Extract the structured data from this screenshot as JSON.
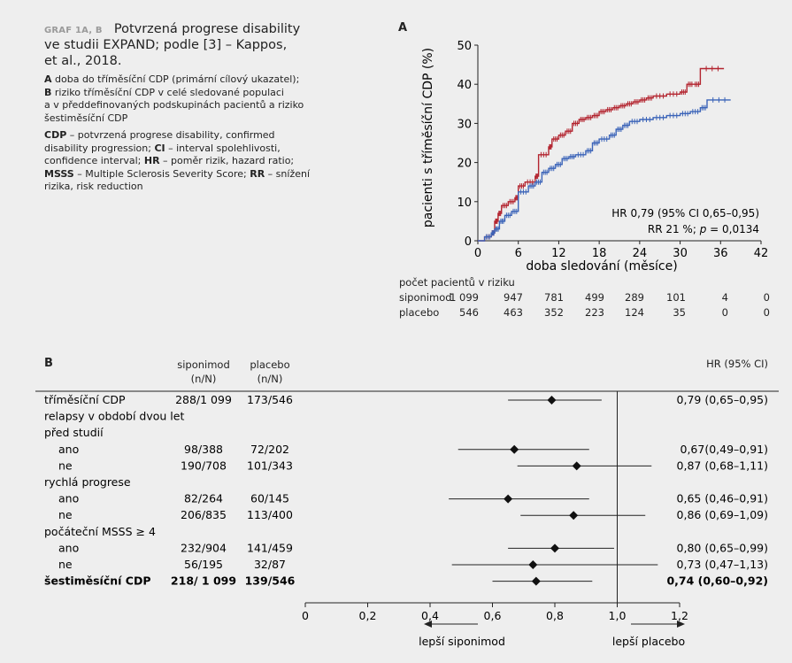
{
  "caption": {
    "tag": "GRAF 1A, B",
    "title_lines": [
      "Potvrzená progrese disability",
      "ve studii EXPAND; podle [3] – Kappos,",
      "et al., 2018."
    ],
    "legend_a_label": "A",
    "legend_a_text": " doba do tříměsíční CDP (primární cílový ukazatel);",
    "legend_b_label": "B",
    "legend_b_text": " riziko tříměsíční CDP v celé sledované populaci",
    "legend_b_line2": "a v předdefinovaných podskupinách pacientů a riziko",
    "legend_b_line3": "šestiměsíční CDP",
    "abbr": [
      {
        "key": "CDP",
        "text": " – potvrzená progrese disability, confirmed"
      },
      {
        "key": "",
        "text": "disability progression; "
      },
      {
        "key": "CI",
        "text": " – interval spolehlivosti,"
      },
      {
        "key": "",
        "text": "confidence interval; "
      },
      {
        "key": "HR",
        "text": " – poměr rizik, hazard ratio;"
      },
      {
        "key": "MSSS",
        "text": " – Multiple Sclerosis Severity Score; "
      },
      {
        "key": "RR",
        "text": " – snížení"
      },
      {
        "key": "",
        "text": "rizika, risk reduction"
      }
    ]
  },
  "panel_a": {
    "label": "A",
    "annotation_1": "HR 0,79 (95% CI 0,65–0,95)",
    "annotation_2_pre": "RR 21 %; ",
    "annotation_2_p": "p",
    "annotation_2_post": " = 0,0134",
    "risk_title": "počet pacientů v riziku",
    "risk_rows": [
      {
        "name": "siponimod",
        "values": [
          "1 099",
          "947",
          "781",
          "499",
          "289",
          "101",
          "4",
          "0"
        ]
      },
      {
        "name": "placebo",
        "values": [
          "546",
          "463",
          "352",
          "223",
          "124",
          "35",
          "0",
          "0"
        ]
      }
    ]
  },
  "panel_b": {
    "label": "B",
    "col_siponimod": "siponimod",
    "col_siponimod_sub": "(n/N)",
    "col_placebo": "placebo",
    "col_placebo_sub": "(n/N)",
    "col_hr": "HR (95% CI)",
    "favors_left": "lepší siponimod",
    "favors_right": "lepší placebo"
  },
  "colors": {
    "siponimod": "#3a63b8",
    "placebo": "#b3242f"
  },
  "chart_data": [
    {
      "type": "line",
      "title": "",
      "xlabel": "doba sledování (měsíce)",
      "ylabel": "pacienti s tříměsíční CDP (%)",
      "xlim": [
        0,
        42
      ],
      "ylim": [
        0,
        50
      ],
      "xticks": [
        0,
        6,
        12,
        18,
        24,
        30,
        36,
        42
      ],
      "yticks": [
        0,
        10,
        20,
        30,
        40,
        50
      ],
      "series": [
        {
          "name": "placebo",
          "color": "#b3242f",
          "x": [
            0,
            1,
            2,
            2.5,
            3,
            3.5,
            4.5,
            5.5,
            6,
            7,
            8.5,
            9,
            10.5,
            11,
            12,
            13,
            14,
            15,
            16,
            17,
            18,
            19,
            20,
            21,
            22,
            23,
            24,
            25,
            26,
            28,
            30,
            31,
            32,
            33,
            36.5
          ],
          "y": [
            0,
            1,
            2,
            5,
            7,
            9,
            10,
            11,
            14,
            15,
            16.5,
            22,
            24,
            26,
            27,
            28,
            30,
            31,
            31.5,
            32,
            33,
            33.5,
            34,
            34.5,
            35,
            35.5,
            36,
            36.5,
            37,
            37.5,
            38,
            40,
            40,
            44,
            44
          ]
        },
        {
          "name": "siponimod",
          "color": "#3a63b8",
          "x": [
            0,
            1,
            2,
            2.5,
            3.2,
            4,
            5,
            6,
            7.5,
            8.5,
            9.5,
            10.5,
            11.5,
            12.5,
            13.5,
            14.5,
            16,
            17,
            18,
            19.5,
            20.5,
            21.5,
            22.5,
            24,
            26,
            28,
            30,
            31.5,
            33,
            34,
            37.5
          ],
          "y": [
            0,
            1,
            2,
            3,
            5,
            6.5,
            7.5,
            12.5,
            14,
            15,
            17.5,
            18.5,
            19.5,
            21,
            21.5,
            22,
            23,
            25,
            26,
            27,
            28.5,
            29.5,
            30.5,
            31,
            31.5,
            32,
            32.5,
            33,
            34,
            36,
            36
          ]
        }
      ]
    },
    {
      "type": "scatter",
      "title": "",
      "xlim": [
        0,
        1.2
      ],
      "xticks": [
        "0",
        "0,2",
        "0,4",
        "0,6",
        "0,8",
        "1,0",
        "1,2"
      ],
      "reference_line": 1.0,
      "rows": [
        {
          "label": "tříměsíční CDP",
          "indent": false,
          "header": false,
          "bold": false,
          "sip": "288/1 099",
          "plc": "173/546",
          "hr": 0.79,
          "lo": 0.65,
          "hi": 0.95,
          "hr_text": "0,79 (0,65–0,95)"
        },
        {
          "label": "relapsy v období dvou let",
          "indent": false,
          "header": true,
          "bold": false
        },
        {
          "label": "před studií",
          "indent": false,
          "header": true,
          "bold": false
        },
        {
          "label": "ano",
          "indent": true,
          "header": false,
          "bold": false,
          "sip": "98/388",
          "plc": "72/202",
          "hr": 0.67,
          "lo": 0.49,
          "hi": 0.91,
          "hr_text": "0,67(0,49–0,91)"
        },
        {
          "label": "ne",
          "indent": true,
          "header": false,
          "bold": false,
          "sip": "190/708",
          "plc": "101/343",
          "hr": 0.87,
          "lo": 0.68,
          "hi": 1.11,
          "hr_text": "0,87 (0,68–1,11)"
        },
        {
          "label": "rychlá progrese",
          "indent": false,
          "header": true,
          "bold": false
        },
        {
          "label": "ano",
          "indent": true,
          "header": false,
          "bold": false,
          "sip": "82/264",
          "plc": "60/145",
          "hr": 0.65,
          "lo": 0.46,
          "hi": 0.91,
          "hr_text": "0,65 (0,46–0,91)"
        },
        {
          "label": "ne",
          "indent": true,
          "header": false,
          "bold": false,
          "sip": "206/835",
          "plc": "113/400",
          "hr": 0.86,
          "lo": 0.69,
          "hi": 1.09,
          "hr_text": "0,86 (0,69–1,09)"
        },
        {
          "label": "počáteční MSSS ≥ 4",
          "indent": false,
          "header": true,
          "bold": false
        },
        {
          "label": "ano",
          "indent": true,
          "header": false,
          "bold": false,
          "sip": "232/904",
          "plc": "141/459",
          "hr": 0.8,
          "lo": 0.65,
          "hi": 0.99,
          "hr_text": "0,80 (0,65–0,99)"
        },
        {
          "label": "ne",
          "indent": true,
          "header": false,
          "bold": false,
          "sip": "56/195",
          "plc": "32/87",
          "hr": 0.73,
          "lo": 0.47,
          "hi": 1.13,
          "hr_text": "0,73 (0,47–1,13)"
        },
        {
          "label": "šestiměsíční CDP",
          "indent": false,
          "header": false,
          "bold": true,
          "sip": "218/ 1 099",
          "plc": "139/546",
          "hr": 0.74,
          "lo": 0.6,
          "hi": 0.92,
          "hr_text": "0,74 (0,60–0,92)"
        }
      ]
    }
  ]
}
